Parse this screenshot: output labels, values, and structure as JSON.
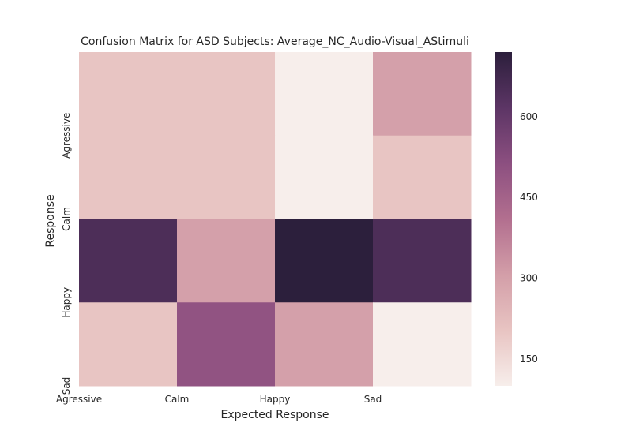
{
  "chart_data": {
    "type": "heatmap",
    "title": "Confusion Matrix for ASD Subjects: Average_NC_Audio-Visual_AStimuli",
    "xlabel": "Expected Response",
    "ylabel": "Response",
    "x_tick_labels": [
      "Agressive",
      "Calm",
      "Happy",
      "Sad"
    ],
    "y_tick_labels": [
      "Agressive",
      "Calm",
      "Happy",
      "Sad"
    ],
    "rows": 4,
    "cols": 4,
    "values": [
      [
        200,
        200,
        100,
        300
      ],
      [
        200,
        200,
        100,
        200
      ],
      [
        650,
        300,
        720,
        650
      ],
      [
        200,
        500,
        300,
        100
      ]
    ],
    "colorbar": {
      "min": 100,
      "max": 720,
      "ticks": [
        150,
        300,
        450,
        600
      ]
    },
    "colormap": [
      "#f7eeeb",
      "#e8c4c2",
      "#d39ea8",
      "#b26f8f",
      "#8c4f80",
      "#5c3565",
      "#2c1f3c"
    ]
  }
}
